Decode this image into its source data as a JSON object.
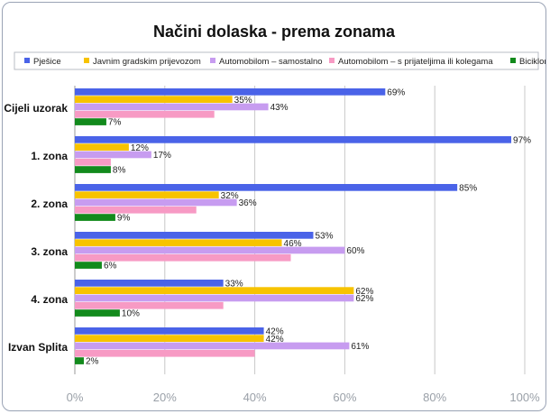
{
  "chart_data": {
    "type": "bar",
    "orientation": "horizontal",
    "title": "Načini dolaska - prema zonama",
    "categories": [
      "Cijeli uzorak",
      "1. zona",
      "2. zona",
      "3. zona",
      "4. zona",
      "Izvan Splita"
    ],
    "series": [
      {
        "name": "Pješice",
        "color": "#4a63e8",
        "values": [
          69,
          97,
          85,
          53,
          33,
          42
        ]
      },
      {
        "name": "Javnim gradskim prijevozom",
        "color": "#f7c300",
        "values": [
          35,
          12,
          32,
          46,
          62,
          42
        ]
      },
      {
        "name": "Automobilom – samostalno",
        "color": "#c79cf0",
        "values": [
          43,
          17,
          36,
          60,
          62,
          61
        ]
      },
      {
        "name": "Automobilom – s prijateljima ili kolegama",
        "color": "#f79ac4",
        "values": [
          31,
          8,
          27,
          48,
          33,
          40
        ]
      },
      {
        "name": "Biciklom",
        "color": "#128a1c",
        "values": [
          7,
          8,
          9,
          6,
          10,
          2
        ]
      }
    ],
    "data_labels": [
      [
        "69%",
        "35%",
        "43%",
        "",
        "7%"
      ],
      [
        "97%",
        "12%",
        "17%",
        "",
        "8%"
      ],
      [
        "85%",
        "32%",
        "36%",
        "",
        "9%"
      ],
      [
        "53%",
        "46%",
        "60%",
        "",
        "6%"
      ],
      [
        "33%",
        "62%",
        "62%",
        "",
        "10%"
      ],
      [
        "42%",
        "42%",
        "61%",
        "",
        "2%"
      ]
    ],
    "xlim": [
      0,
      100
    ],
    "x_ticks": [
      "0%",
      "20%",
      "40%",
      "60%",
      "80%",
      "100%"
    ],
    "grid": true,
    "legend_position": "top"
  }
}
